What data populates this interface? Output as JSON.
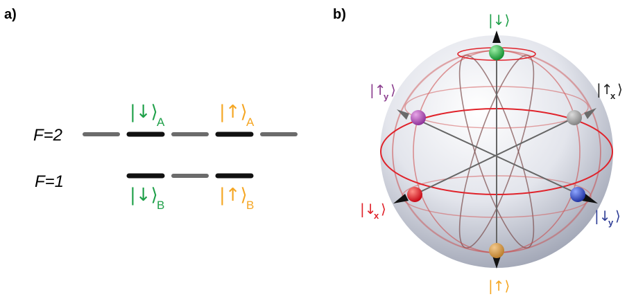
{
  "panels": {
    "a": "a)",
    "b": "b)"
  },
  "levels": {
    "f2": "F=2",
    "f1": "F=1"
  },
  "states_a": [
    {
      "ket": "|↓⟩",
      "sub": "A",
      "color": "#1fa049"
    },
    {
      "ket": "|↑⟩",
      "sub": "A",
      "color": "#f5a623"
    },
    {
      "ket": "|↓⟩",
      "sub": "B",
      "color": "#1fa049"
    },
    {
      "ket": "|↑⟩",
      "sub": "B",
      "color": "#f5a623"
    }
  ],
  "sphere": {
    "top": {
      "head": "|↓⟩",
      "sub": "",
      "color": "#1fa049"
    },
    "bottom": {
      "head": "|↑⟩",
      "sub": "",
      "color": "#f5a623"
    },
    "up_x": {
      "head": "|↑",
      "sub": "x",
      "color": "#222222"
    },
    "up_y": {
      "head": "|↑",
      "sub": "y",
      "color": "#8b3d8e"
    },
    "down_x": {
      "head": "|↓",
      "sub": "x",
      "color": "#e0222a"
    },
    "down_y": {
      "head": "|↓",
      "sub": "y",
      "color": "#2e3d96"
    }
  },
  "colors": {
    "active_level": "#111111",
    "inactive_level": "#6b6b6b",
    "equator": "#e0222a",
    "meridian": "#7a4b4b"
  }
}
